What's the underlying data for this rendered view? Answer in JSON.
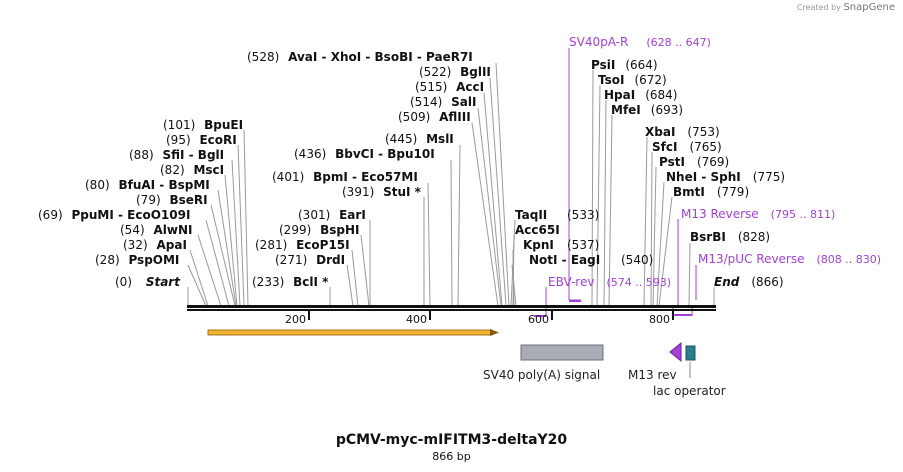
{
  "credit": {
    "prefix": "Created by",
    "brand": "SnapGene"
  },
  "plasmid": {
    "name": "pCMV-myc-mIFITM3-deltaY20",
    "length_label": "866 bp",
    "length": 866
  },
  "axis": {
    "ticks": [
      "200",
      "400",
      "600",
      "800"
    ]
  },
  "left_labels": [
    {
      "pos": "(0)",
      "name": "Start"
    },
    {
      "pos": "(28)",
      "name": "PspOMI"
    },
    {
      "pos": "(32)",
      "name": "ApaI"
    },
    {
      "pos": "(54)",
      "name": "AlwNI"
    },
    {
      "pos": "(69)",
      "name": "PpuMI  -  EcoO109I"
    },
    {
      "pos": "(79)",
      "name": "BseRI"
    },
    {
      "pos": "(80)",
      "name": "BfuAI  -  BspMI"
    },
    {
      "pos": "(82)",
      "name": "MscI"
    },
    {
      "pos": "(88)",
      "name": "SfiI  -  BglI"
    },
    {
      "pos": "(95)",
      "name": "EcoRI"
    },
    {
      "pos": "(101)",
      "name": "BpuEI"
    }
  ],
  "mid_labels": [
    {
      "pos": "(233)",
      "name": "BclI *"
    },
    {
      "pos": "(271)",
      "name": "DrdI"
    },
    {
      "pos": "(281)",
      "name": "EcoP15I"
    },
    {
      "pos": "(299)",
      "name": "BspHI"
    },
    {
      "pos": "(301)",
      "name": "EarI"
    },
    {
      "pos": "(391)",
      "name": "StuI *"
    },
    {
      "pos": "(401)",
      "name": "BpmI  -  Eco57MI"
    },
    {
      "pos": "(436)",
      "name": "BbvCI  -  Bpu10I"
    },
    {
      "pos": "(445)",
      "name": "MslI"
    },
    {
      "pos": "(509)",
      "name": "AflIII"
    },
    {
      "pos": "(514)",
      "name": "SalI"
    },
    {
      "pos": "(515)",
      "name": "AccI"
    },
    {
      "pos": "(522)",
      "name": "BglII"
    },
    {
      "pos": "(528)",
      "name": "AvaI  -  XhoI  -  BsoBI  -  PaeR7I"
    }
  ],
  "right_labels": [
    {
      "pos": "(540)",
      "name": "NotI  -  EagI"
    },
    {
      "pos": "(537)",
      "name": "KpnI"
    },
    {
      "pos": "",
      "name": "Acc65I"
    },
    {
      "pos": "(533)",
      "name": "TaqII"
    },
    {
      "pos": "(664)",
      "name": "PsiI"
    },
    {
      "pos": "(672)",
      "name": "TsoI"
    },
    {
      "pos": "(684)",
      "name": "HpaI"
    },
    {
      "pos": "(693)",
      "name": "MfeI"
    },
    {
      "pos": "(753)",
      "name": "XbaI"
    },
    {
      "pos": "(765)",
      "name": "SfcI"
    },
    {
      "pos": "(769)",
      "name": "PstI"
    },
    {
      "pos": "(775)",
      "name": "NheI  -  SphI"
    },
    {
      "pos": "(779)",
      "name": "BmtI"
    },
    {
      "pos": "(828)",
      "name": "BsrBI"
    },
    {
      "pos": "(866)",
      "name": "End"
    }
  ],
  "primers": [
    {
      "name": "SV40pA-R",
      "range": "(628 .. 647)"
    },
    {
      "name": "EBV-rev",
      "range": "(574 .. 593)"
    },
    {
      "name": "M13 Reverse",
      "range": "(795 .. 811)"
    },
    {
      "name": "M13/pUC Reverse",
      "range": "(808 .. 830)"
    }
  ],
  "features": [
    {
      "name": "SV40 poly(A) signal",
      "color": "#a9acb4"
    },
    {
      "name": "M13 rev",
      "color": "#a340d8"
    },
    {
      "name": "lac operator",
      "color": "#2e7d8c"
    }
  ],
  "colors": {
    "primer": "#a340d8",
    "orf_arrow": "#f2b430",
    "backbone": "#111111"
  }
}
